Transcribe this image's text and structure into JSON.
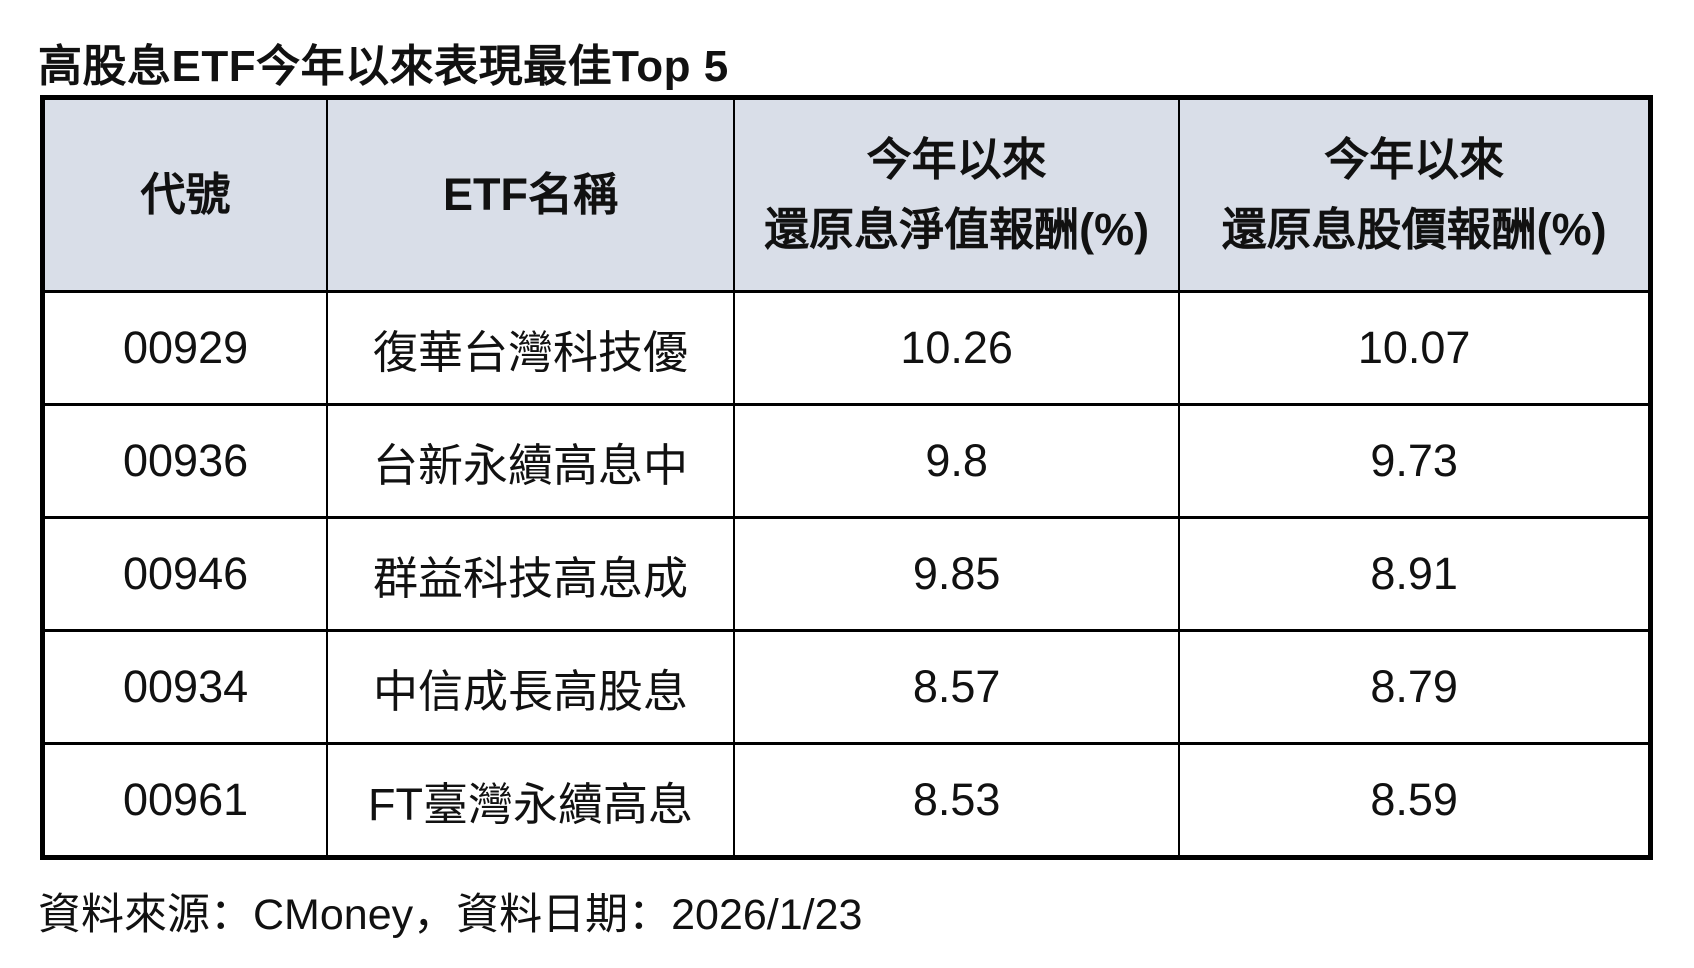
{
  "title": "高股息ETF今年以來表現最佳Top 5",
  "colors": {
    "header_bg": "#d9dee8",
    "border": "#000000",
    "text": "#111111",
    "page_bg": "#ffffff"
  },
  "table": {
    "col_headers": {
      "code": "代號",
      "name": "ETF名稱",
      "nav_line1": "今年以來",
      "nav_line2": "還原息淨值報酬(%)",
      "price_line1": "今年以來",
      "price_line2": "還原息股價報酬(%)"
    },
    "rows": [
      {
        "code": "00929",
        "name": "復華台灣科技優",
        "nav_return": "10.26",
        "price_return": "10.07"
      },
      {
        "code": "00936",
        "name": "台新永續高息中",
        "nav_return": "9.8",
        "price_return": "9.73"
      },
      {
        "code": "00946",
        "name": "群益科技高息成",
        "nav_return": "9.85",
        "price_return": "8.91"
      },
      {
        "code": "00934",
        "name": "中信成長高股息",
        "nav_return": "8.57",
        "price_return": "8.79"
      },
      {
        "code": "00961",
        "name": "FT臺灣永續高息",
        "nav_return": "8.53",
        "price_return": "8.59"
      }
    ]
  },
  "footer": {
    "source_note": "資料來源：CMoney，資料日期：2026/1/23"
  },
  "chart_data": {
    "type": "table",
    "title": "高股息ETF今年以來表現最佳Top 5",
    "columns": [
      "代號",
      "ETF名稱",
      "今年以來還原息淨值報酬(%)",
      "今年以來還原息股價報酬(%)"
    ],
    "rows": [
      [
        "00929",
        "復華台灣科技優",
        10.26,
        10.07
      ],
      [
        "00936",
        "台新永續高息中",
        9.8,
        9.73
      ],
      [
        "00946",
        "群益科技高息成",
        9.85,
        8.91
      ],
      [
        "00934",
        "中信成長高股息",
        8.57,
        8.79
      ],
      [
        "00961",
        "FT臺灣永續高息",
        8.53,
        8.59
      ]
    ],
    "source": "CMoney",
    "data_date": "2026/1/23",
    "header_fill": "#d9dee8",
    "grid": "on"
  }
}
